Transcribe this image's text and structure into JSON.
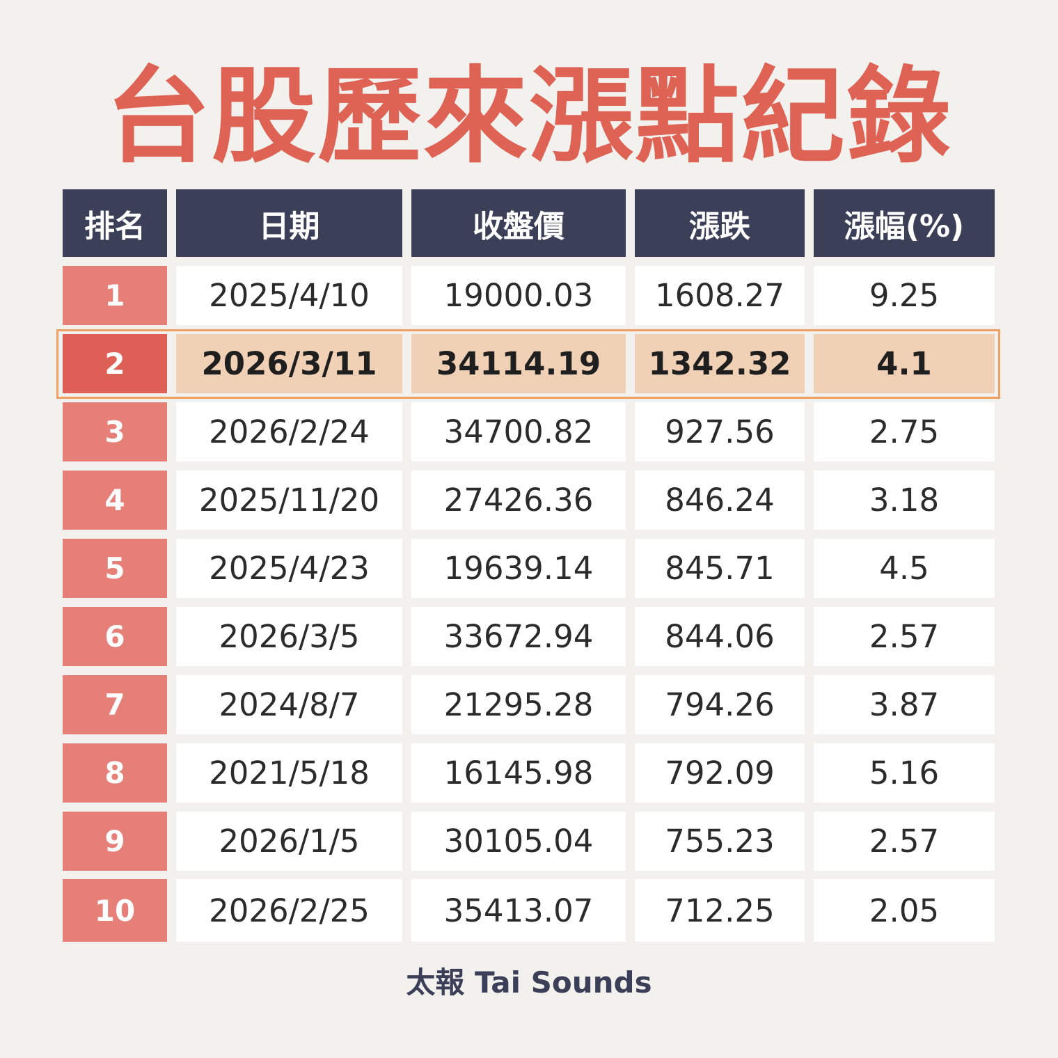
{
  "title": "台股歷來漲點紀錄",
  "table": {
    "headers": [
      "排名",
      "日期",
      "收盤價",
      "漲跌",
      "漲幅(%)"
    ],
    "rows": [
      {
        "rank": "1",
        "date": "2025/4/10",
        "close": "19000.03",
        "change": "1608.27",
        "pct": "9.25"
      },
      {
        "rank": "2",
        "date": "2026/3/11",
        "close": "34114.19",
        "change": "1342.32",
        "pct": "4.1"
      },
      {
        "rank": "3",
        "date": "2026/2/24",
        "close": "34700.82",
        "change": "927.56",
        "pct": "2.75"
      },
      {
        "rank": "4",
        "date": "2025/11/20",
        "close": "27426.36",
        "change": "846.24",
        "pct": "3.18"
      },
      {
        "rank": "5",
        "date": "2025/4/23",
        "close": "19639.14",
        "change": "845.71",
        "pct": "4.5"
      },
      {
        "rank": "6",
        "date": "2026/3/5",
        "close": "33672.94",
        "change": "844.06",
        "pct": "2.57"
      },
      {
        "rank": "7",
        "date": "2024/8/7",
        "close": "21295.28",
        "change": "794.26",
        "pct": "3.87"
      },
      {
        "rank": "8",
        "date": "2021/5/18",
        "close": "16145.98",
        "change": "792.09",
        "pct": "5.16"
      },
      {
        "rank": "9",
        "date": "2026/1/5",
        "close": "30105.04",
        "change": "755.23",
        "pct": "2.57"
      },
      {
        "rank": "10",
        "date": "2026/2/25",
        "close": "35413.07",
        "change": "712.25",
        "pct": "2.05"
      }
    ],
    "highlighted_rank": "2"
  },
  "footer": "太報 Tai Sounds",
  "colors": {
    "title": "#de6355",
    "header_bg": "#3c3f58",
    "rank_bg": "#e57f77",
    "rank_highlight_bg": "#dd5f56",
    "row_highlight_bg": "#f1d1b5",
    "highlight_border": "#f0a062",
    "background": "#f2f1ee"
  }
}
